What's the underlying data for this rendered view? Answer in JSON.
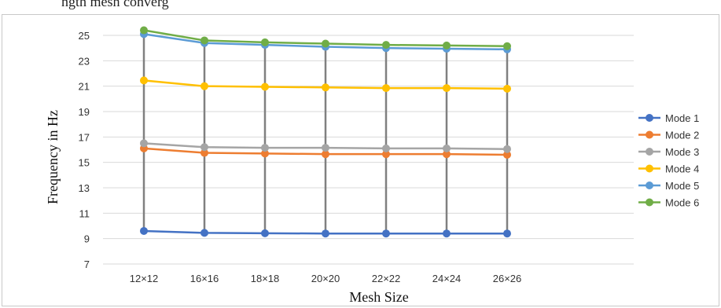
{
  "caption_fragment": "ngth mesh converg",
  "chart_data": {
    "type": "line",
    "categories": [
      "12×12",
      "16×16",
      "18×18",
      "20×20",
      "22×22",
      "24×24",
      "26×26"
    ],
    "xlabel": "Mesh Size",
    "ylabel": "Frequency in Hz",
    "ylim": [
      7,
      25
    ],
    "yticks": [
      7,
      9,
      11,
      13,
      15,
      17,
      19,
      21,
      23,
      25
    ],
    "grid": "horizontal",
    "legend": "right",
    "drop_lines": true,
    "series": [
      {
        "name": "Mode 1",
        "color": "#4472c4",
        "values": [
          9.6,
          9.45,
          9.42,
          9.4,
          9.4,
          9.4,
          9.4
        ]
      },
      {
        "name": "Mode 2",
        "color": "#ed7d31",
        "values": [
          16.1,
          15.75,
          15.7,
          15.65,
          15.65,
          15.65,
          15.6
        ]
      },
      {
        "name": "Mode 3",
        "color": "#a5a5a5",
        "values": [
          16.5,
          16.2,
          16.15,
          16.15,
          16.1,
          16.1,
          16.05
        ]
      },
      {
        "name": "Mode 4",
        "color": "#ffc000",
        "values": [
          21.45,
          21.0,
          20.95,
          20.9,
          20.85,
          20.85,
          20.8
        ]
      },
      {
        "name": "Mode 5",
        "color": "#5b9bd5",
        "values": [
          25.1,
          24.4,
          24.25,
          24.1,
          24.0,
          23.95,
          23.9
        ]
      },
      {
        "name": "Mode 6",
        "color": "#70ad47",
        "values": [
          25.4,
          24.6,
          24.45,
          24.35,
          24.25,
          24.2,
          24.15
        ]
      }
    ]
  }
}
